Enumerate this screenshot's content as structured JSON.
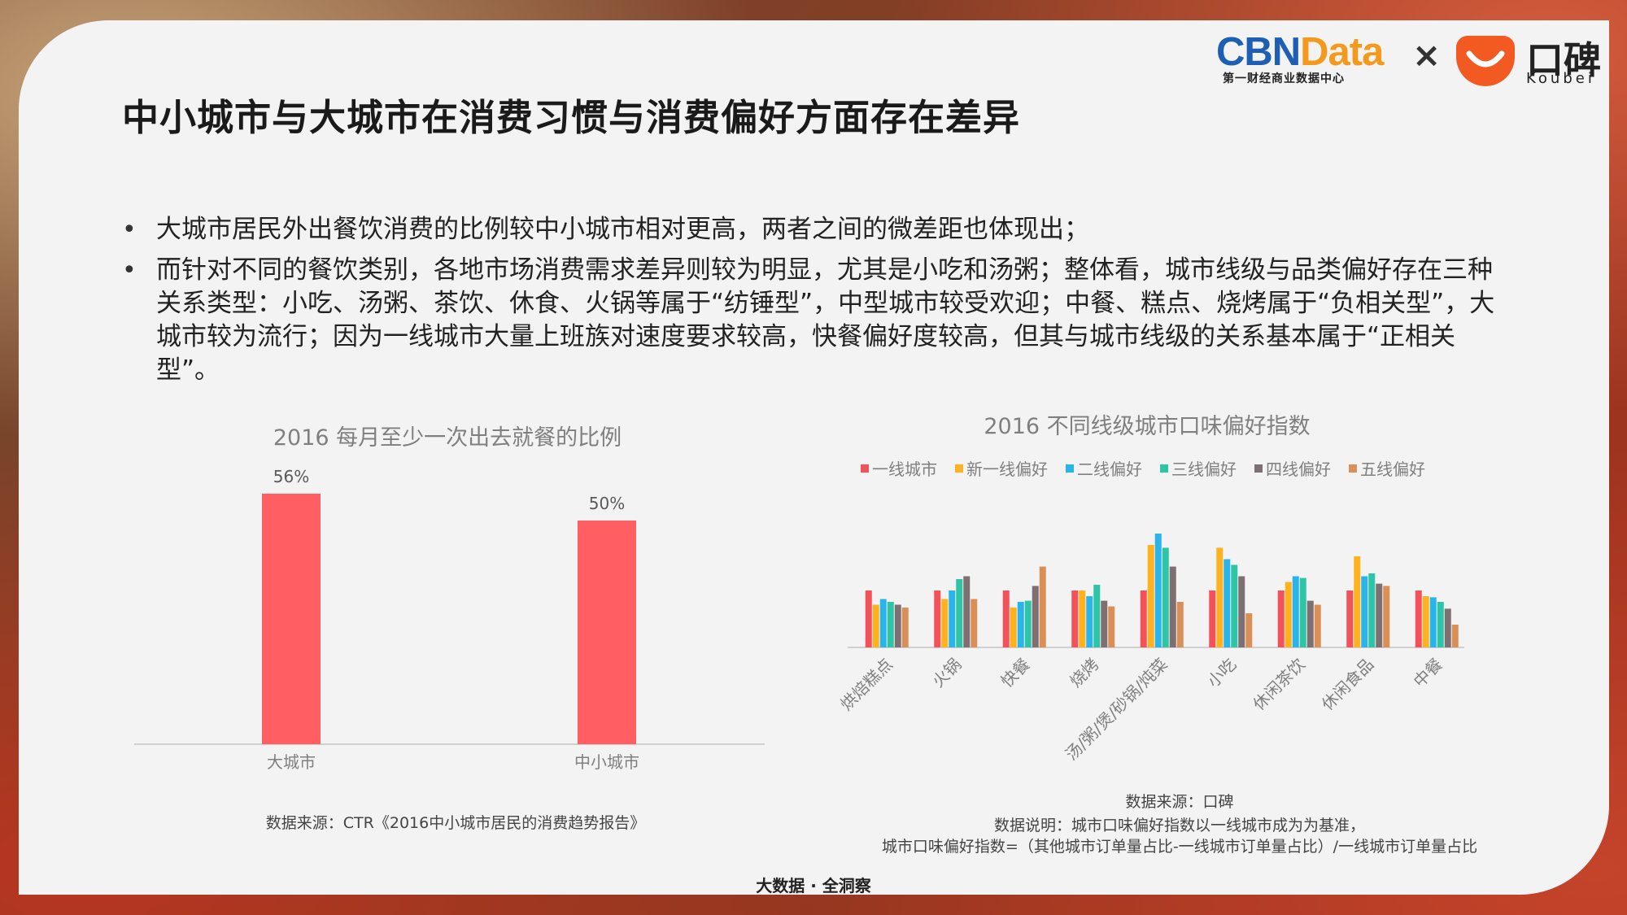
{
  "header": {
    "title": "中小城市与大城市在消费习惯与消费偏好方面存在差异",
    "logo_cbn_a": "CBN",
    "logo_cbn_b": "Data",
    "logo_cbn_sub": "第一财经商业数据中心",
    "logo_times": "×",
    "logo_koubei": "口碑",
    "logo_koubei_sub": "Koubei"
  },
  "bullets": [
    "大城市居民外出餐饮消费的比例较中小城市相对更高，两者之间的微差距也体现出；",
    "而针对不同的餐饮类别，各地市场消费需求差异则较为明显，尤其是小吃和汤粥；整体看，城市线级与品类偏好存在三种关系类型：小吃、汤粥、茶饮、休食、火锅等属于“纺锤型”，中型城市较受欢迎；中餐、糕点、烧烤属于“负相关型”，大城市较为流行；因为一线城市大量上班族对速度要求较高，快餐偏好度较高，但其与城市线级的关系基本属于“正相关型”。"
  ],
  "chart_left_source": "数据来源：CTR《2016中小城市居民的消费趋势报告》",
  "chart_right_notes": {
    "source": "数据来源：口碑",
    "note1": "数据说明：城市口味偏好指数以一线城市成为为基准，",
    "note2": "城市口味偏好指数=（其他城市订单量占比-一线城市订单量占比）/一线城市订单量占比"
  },
  "footer": "大数据 · 全洞察",
  "colors": {
    "bar_red": "#ff5f62",
    "series": [
      "#f4525a",
      "#ffb21e",
      "#2bb4ea",
      "#2ec4a6",
      "#7d6f72",
      "#d98f55"
    ]
  },
  "chart_data": [
    {
      "type": "bar",
      "title": "2016 每月至少一次出去就餐的比例",
      "categories": [
        "大城市",
        "中小城市"
      ],
      "values": [
        56,
        50
      ],
      "value_labels": [
        "56%",
        "50%"
      ],
      "ylim": [
        0,
        60
      ]
    },
    {
      "type": "bar",
      "title": "2016 不同线级城市口味偏好指数",
      "categories": [
        "烘焙糕点",
        "火锅",
        "快餐",
        "烧烤",
        "汤/粥/煲/砂锅/炖菜",
        "小吃",
        "休闲茶饮",
        "休闲食品",
        "中餐"
      ],
      "series": [
        {
          "name": "一线城市",
          "values": [
            1.0,
            1.0,
            1.0,
            1.0,
            1.0,
            1.0,
            1.0,
            1.0,
            1.0
          ]
        },
        {
          "name": "新一线偏好",
          "values": [
            0.75,
            0.85,
            0.7,
            1.0,
            1.8,
            1.75,
            1.15,
            1.6,
            0.9
          ]
        },
        {
          "name": "二线偏好",
          "values": [
            0.85,
            1.0,
            0.8,
            0.9,
            2.0,
            1.55,
            1.25,
            1.25,
            0.88
          ]
        },
        {
          "name": "三线偏好",
          "values": [
            0.8,
            1.2,
            0.82,
            1.1,
            1.75,
            1.45,
            1.22,
            1.3,
            0.8
          ]
        },
        {
          "name": "四线偏好",
          "values": [
            0.75,
            1.25,
            1.08,
            0.82,
            1.42,
            1.25,
            0.82,
            1.12,
            0.68
          ]
        },
        {
          "name": "五线偏好",
          "values": [
            0.7,
            0.85,
            1.42,
            0.72,
            0.8,
            0.6,
            0.75,
            1.08,
            0.4
          ]
        }
      ],
      "ylim": [
        0,
        2.0
      ],
      "legend_position": "top"
    }
  ]
}
